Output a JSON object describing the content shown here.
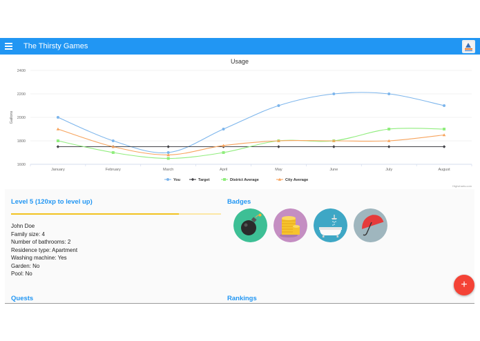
{
  "appbar": {
    "title": "The Thirsty Games",
    "menu_icon": "menu-icon",
    "logo_icon": "logo-icon"
  },
  "chart_data": {
    "type": "line",
    "title": "Usage",
    "ylabel": "Gallons",
    "xlabel": "",
    "categories": [
      "January",
      "February",
      "March",
      "April",
      "May",
      "June",
      "July",
      "August"
    ],
    "ylim": [
      1600,
      2400
    ],
    "yticks": [
      1600,
      1800,
      2000,
      2200,
      2400
    ],
    "legend": "bottom-center",
    "grid": true,
    "series": [
      {
        "name": "You",
        "color": "#7cb5ec",
        "marker": "circle",
        "values": [
          2000,
          1800,
          1700,
          1900,
          2100,
          2200,
          2200,
          2100
        ]
      },
      {
        "name": "Target",
        "color": "#434348",
        "marker": "diamond",
        "values": [
          1750,
          1750,
          1750,
          1750,
          1750,
          1750,
          1750,
          1750
        ]
      },
      {
        "name": "District Average",
        "color": "#90ed7d",
        "marker": "square",
        "values": [
          1800,
          1700,
          1650,
          1700,
          1800,
          1800,
          1900,
          1900
        ]
      },
      {
        "name": "City Average",
        "color": "#f7a35c",
        "marker": "triangle",
        "values": [
          1900,
          1750,
          1680,
          1760,
          1800,
          1800,
          1800,
          1850
        ]
      }
    ],
    "credits": "Highcharts.com"
  },
  "level": {
    "title": "Level 5 (120xp to level up)",
    "progress": 0.8
  },
  "profile": {
    "name": "John Doe",
    "family_size": "Family size: 4",
    "bathrooms": "Number of bathrooms: 2",
    "residence": "Residence type: Apartment",
    "washing": "Washing machine: Yes",
    "garden": "Garden: No",
    "pool": "Pool: No"
  },
  "badges": {
    "title": "Badges",
    "items": [
      {
        "icon": "bomb-icon",
        "color": "#3dbf95"
      },
      {
        "icon": "coins-icon",
        "color": "#c48ec2"
      },
      {
        "icon": "bathtub-icon",
        "color": "#3ea7c5"
      },
      {
        "icon": "umbrella-icon",
        "color": "#9fb6be"
      }
    ]
  },
  "quests": {
    "title": "Quests"
  },
  "rankings": {
    "title": "Rankings"
  },
  "fab": {
    "label": "+"
  }
}
